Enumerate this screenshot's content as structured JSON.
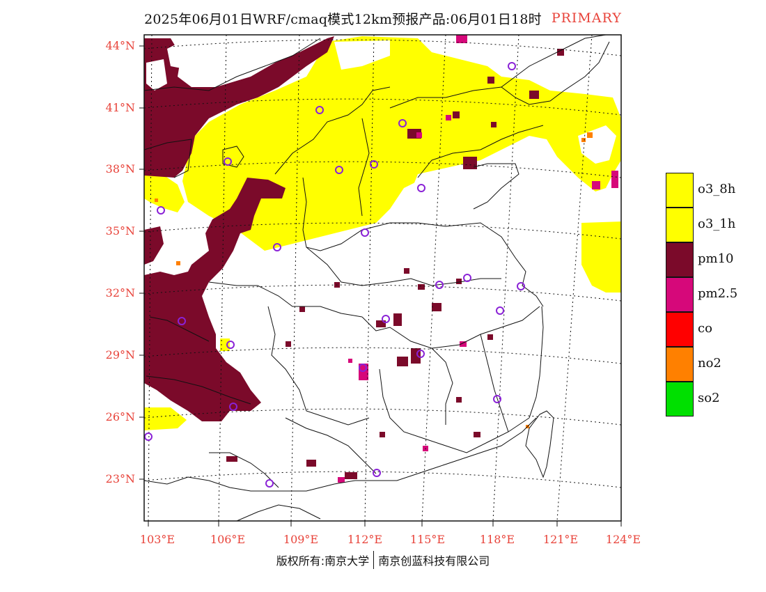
{
  "title": {
    "main": "2025年06月01日WRF/cmaq模式12km预报产品:06月01日18时",
    "tag": "PRIMARY"
  },
  "axes": {
    "lat_labels": [
      "44°N",
      "41°N",
      "38°N",
      "35°N",
      "32°N",
      "29°N",
      "26°N",
      "23°N"
    ],
    "lon_labels": [
      "103°E",
      "106°E",
      "109°E",
      "112°E",
      "115°E",
      "118°E",
      "121°E",
      "124°E"
    ]
  },
  "legend": [
    {
      "label": "o3_8h",
      "color": "#ffff00"
    },
    {
      "label": "o3_1h",
      "color": "#ffff00"
    },
    {
      "label": "pm10",
      "color": "#7b0a2a"
    },
    {
      "label": "pm2.5",
      "color": "#d6087a"
    },
    {
      "label": "co",
      "color": "#ff0000"
    },
    {
      "label": "no2",
      "color": "#ff8000"
    },
    {
      "label": "so2",
      "color": "#00e000"
    }
  ],
  "footer": {
    "left": "版权所有:南京大学",
    "right": "南京创蓝科技有限公司"
  },
  "colors": {
    "title_tag": "#e8433a",
    "axis_labels": "#e8433a",
    "city_marker": "#8a22d6"
  }
}
